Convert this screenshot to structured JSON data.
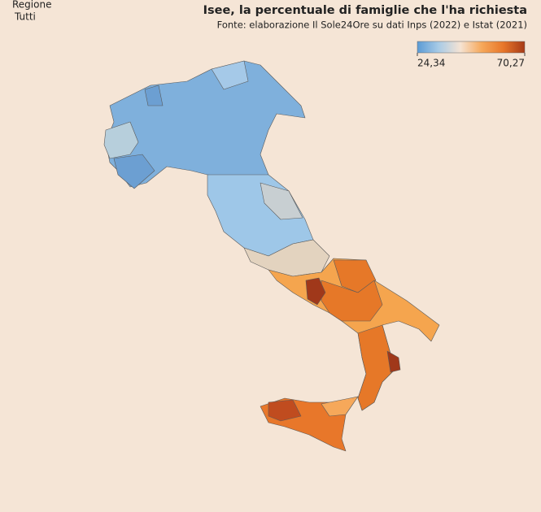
{
  "filter": {
    "label": "Regione",
    "value": "Tutti"
  },
  "title": "Isee, la percentuale di famiglie che l'ha richiesta",
  "subtitle": "Fonte: elaborazione Il Sole24Ore su dati Inps (2022) e Istat (2021)",
  "color_scale": {
    "min": {
      "value": 24.34,
      "label": "24,34"
    },
    "max": {
      "value": 70.27,
      "label": "70,27"
    },
    "colors": [
      "#5b9bd5",
      "#a9cbe6",
      "#f5e3d3",
      "#f6a85a",
      "#e8772a",
      "#a63a17"
    ]
  }
}
